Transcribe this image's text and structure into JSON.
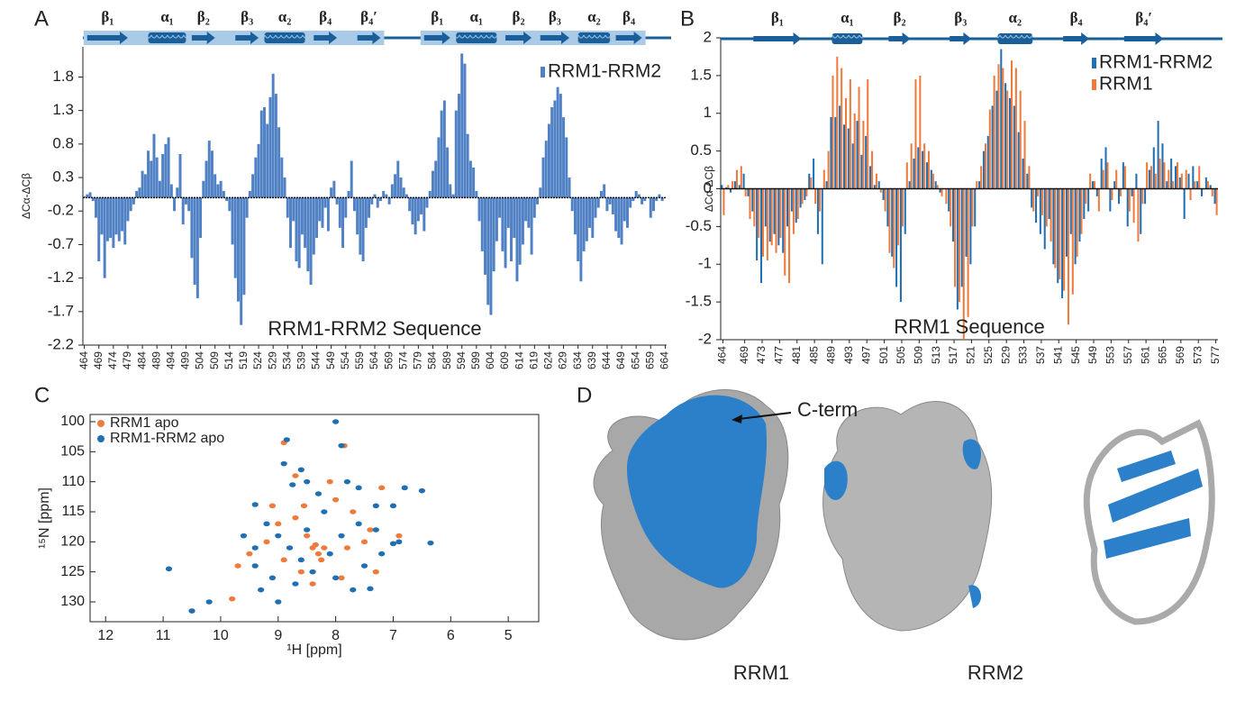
{
  "chart_data": [
    {
      "type": "bar",
      "panel_label": "A",
      "x_label": "RRM1-RRM2 Sequence",
      "y_label": "ΔCα-ΔCβ",
      "legend": "upper right",
      "ss_shaded": true,
      "xlim": [
        463.5,
        664.5
      ],
      "ylim": [
        -2.2,
        2.25
      ],
      "yticks": [
        1.8,
        1.3,
        0.8,
        0.3,
        -0.2,
        -0.7,
        -1.2,
        -1.7,
        -2.2
      ],
      "xticks": [
        464,
        469,
        474,
        479,
        484,
        489,
        494,
        499,
        504,
        509,
        514,
        519,
        524,
        529,
        534,
        539,
        544,
        549,
        554,
        559,
        564,
        569,
        574,
        579,
        584,
        589,
        594,
        599,
        604,
        609,
        614,
        619,
        624,
        629,
        634,
        639,
        644,
        649,
        654,
        659,
        664
      ],
      "x": [
        464,
        465,
        466,
        467,
        468,
        469,
        470,
        471,
        472,
        473,
        474,
        475,
        476,
        477,
        478,
        479,
        480,
        481,
        482,
        483,
        484,
        485,
        486,
        487,
        488,
        489,
        490,
        491,
        492,
        493,
        494,
        495,
        496,
        497,
        498,
        499,
        500,
        501,
        502,
        503,
        504,
        505,
        506,
        507,
        508,
        509,
        510,
        511,
        512,
        513,
        514,
        515,
        516,
        517,
        518,
        519,
        520,
        521,
        522,
        523,
        524,
        525,
        526,
        527,
        528,
        529,
        530,
        531,
        532,
        533,
        534,
        535,
        536,
        537,
        538,
        539,
        540,
        541,
        542,
        543,
        544,
        545,
        546,
        547,
        548,
        549,
        550,
        551,
        552,
        553,
        554,
        555,
        556,
        557,
        558,
        559,
        560,
        561,
        562,
        563,
        564,
        565,
        566,
        567,
        568,
        569,
        570,
        571,
        572,
        573,
        574,
        575,
        576,
        577,
        578,
        579,
        580,
        581,
        582,
        583,
        584,
        585,
        586,
        587,
        588,
        589,
        590,
        591,
        592,
        593,
        594,
        595,
        596,
        597,
        598,
        599,
        600,
        601,
        602,
        603,
        604,
        605,
        606,
        607,
        608,
        609,
        610,
        611,
        612,
        613,
        614,
        615,
        616,
        617,
        618,
        619,
        620,
        621,
        622,
        623,
        624,
        625,
        626,
        627,
        628,
        629,
        630,
        631,
        632,
        633,
        634,
        635,
        636,
        637,
        638,
        639,
        640,
        641,
        642,
        643,
        644,
        645,
        646,
        647,
        648,
        649,
        650,
        651,
        652,
        653,
        654,
        655,
        656,
        657,
        658,
        659,
        660,
        661,
        662,
        663,
        664
      ],
      "series": [
        {
          "name": "RRM1-RRM2",
          "color": "#4f81c4",
          "values": [
            0.02,
            0.05,
            0.08,
            -0.05,
            -0.3,
            -0.95,
            -0.55,
            -1.2,
            -0.65,
            -0.6,
            -0.75,
            -0.55,
            -0.65,
            -0.5,
            -0.7,
            -0.35,
            -0.2,
            -0.1,
            0.1,
            0.15,
            0.4,
            0.35,
            0.7,
            0.55,
            0.95,
            0.6,
            0.25,
            0.65,
            0.8,
            0.9,
            0.2,
            -0.2,
            0.15,
            0.65,
            -0.4,
            -0.1,
            -0.2,
            -0.9,
            -1.3,
            -1.5,
            -0.6,
            0.25,
            0.55,
            0.85,
            0.7,
            0.35,
            0.2,
            0.25,
            0.1,
            -0.05,
            -0.2,
            -0.7,
            -1.2,
            -1.55,
            -1.9,
            -1.45,
            -0.3,
            0.1,
            0.35,
            0.6,
            0.8,
            1.3,
            1.35,
            1.1,
            1.5,
            1.85,
            1.55,
            1.05,
            0.6,
            0.3,
            -0.3,
            -0.75,
            -0.35,
            -0.95,
            -1.05,
            -0.55,
            -0.75,
            -1.1,
            -1.3,
            -0.85,
            -0.6,
            -0.35,
            -0.45,
            -0.15,
            -0.5,
            0.15,
            0.25,
            -0.1,
            -0.45,
            -0.75,
            -0.3,
            0.1,
            0.55,
            -0.2,
            -0.55,
            -0.85,
            -0.95,
            -0.45,
            -0.3,
            -0.1,
            0.05,
            -0.15,
            -0.05,
            0.1,
            0.05,
            -0.1,
            0.2,
            0.35,
            0.55,
            0.3,
            0.15,
            0.05,
            -0.2,
            -0.4,
            -0.55,
            -0.35,
            -0.25,
            -0.5,
            -0.15,
            0.1,
            0.4,
            0.55,
            0.9,
            1.3,
            1.45,
            0.75,
            0.2,
            0.05,
            1.3,
            1.55,
            2.15,
            2.0,
            0.95,
            0.55,
            0.45,
            0.1,
            -0.35,
            -0.8,
            -1.15,
            -1.6,
            -1.75,
            -1.1,
            -0.65,
            -0.3,
            -0.8,
            -1.05,
            -0.45,
            -0.95,
            -0.6,
            -1.25,
            -1,
            -0.7,
            -0.35,
            -0.45,
            -0.85,
            -0.3,
            -0.1,
            0.15,
            0.6,
            0.85,
            1.1,
            1.35,
            1.45,
            1.65,
            1.55,
            1.2,
            0.9,
            0.3,
            -0.2,
            -0.55,
            -0.95,
            -1.25,
            -0.8,
            -0.65,
            -0.45,
            -0.6,
            -0.3,
            -0.15,
            0.1,
            0.2,
            -0.2,
            -0.1,
            -0.25,
            -0.5,
            -0.6,
            -0.7,
            -0.35,
            -0.45,
            -0.15,
            -0.05,
            0.1,
            0.05,
            -0.1,
            -0.05,
            0,
            -0.3,
            -0.2,
            -0.05,
            0.05,
            -0.05,
            0
          ]
        }
      ],
      "secondary_structure": [
        [
          {
            "label": "β₁",
            "start": 465,
            "end": 479
          },
          {
            "label": "α₁",
            "start": 486,
            "end": 499
          },
          {
            "label": "β₂",
            "start": 501,
            "end": 509
          },
          {
            "label": "β₃",
            "start": 516,
            "end": 524
          },
          {
            "label": "α₂",
            "start": 526,
            "end": 540
          },
          {
            "label": "β₄",
            "start": 543,
            "end": 551
          },
          {
            "label": "β₄′",
            "start": 558,
            "end": 566
          }
        ],
        [
          {
            "label": "β₁",
            "start": 581,
            "end": 590
          },
          {
            "label": "α₁",
            "start": 592,
            "end": 606
          },
          {
            "label": "β₂",
            "start": 609,
            "end": 618
          },
          {
            "label": "β₃",
            "start": 621,
            "end": 631
          },
          {
            "label": "α₂",
            "start": 634,
            "end": 645
          },
          {
            "label": "β₄",
            "start": 647,
            "end": 656
          }
        ]
      ]
    },
    {
      "type": "bar",
      "panel_label": "B",
      "x_label": "RRM1 Sequence",
      "y_label": "ΔCα-ΔCβ",
      "legend": "upper right",
      "ss_shaded": false,
      "xlim": [
        463.5,
        577.5
      ],
      "ylim": [
        -2,
        2
      ],
      "yticks": [
        2,
        1.5,
        1,
        0.5,
        0,
        -0.5,
        -1,
        -1.5,
        -2
      ],
      "xticks": [
        464,
        469,
        473,
        477,
        481,
        485,
        489,
        493,
        497,
        501,
        505,
        509,
        513,
        517,
        521,
        525,
        529,
        533,
        537,
        541,
        545,
        549,
        553,
        557,
        561,
        565,
        569,
        573,
        577
      ],
      "x": [
        464,
        465,
        466,
        467,
        468,
        469,
        470,
        471,
        472,
        473,
        474,
        475,
        476,
        477,
        478,
        479,
        480,
        481,
        482,
        483,
        484,
        485,
        486,
        487,
        488,
        489,
        490,
        491,
        492,
        493,
        494,
        495,
        496,
        497,
        498,
        499,
        500,
        501,
        502,
        503,
        504,
        505,
        506,
        507,
        508,
        509,
        510,
        511,
        512,
        513,
        514,
        515,
        516,
        517,
        518,
        519,
        520,
        521,
        522,
        523,
        524,
        525,
        526,
        527,
        528,
        529,
        530,
        531,
        532,
        533,
        534,
        535,
        536,
        537,
        538,
        539,
        540,
        541,
        542,
        543,
        544,
        545,
        546,
        547,
        548,
        549,
        550,
        551,
        552,
        553,
        554,
        555,
        556,
        557,
        558,
        559,
        560,
        561,
        562,
        563,
        564,
        565,
        566,
        567,
        568,
        569,
        570,
        571,
        572,
        573,
        574,
        575,
        576,
        577
      ],
      "series": [
        {
          "name": "RRM1-RRM2",
          "color": "#1f6fb2",
          "values": [
            0.05,
            0.02,
            -0.05,
            0.1,
            0.05,
            0.2,
            -0.1,
            -0.3,
            -0.95,
            -1.25,
            -0.5,
            -0.7,
            -0.6,
            -0.75,
            -0.85,
            -0.5,
            -0.3,
            -0.45,
            -0.25,
            -0.15,
            0.2,
            0.4,
            -0.6,
            -1,
            0.1,
            0.95,
            0.95,
            1.1,
            0.85,
            0.8,
            0.6,
            0.9,
            0.45,
            0.7,
            0.3,
            0.05,
            0.1,
            -0.15,
            -0.5,
            -0.9,
            -1.3,
            -1.5,
            -0.6,
            0.1,
            0.4,
            0.55,
            0.5,
            0.35,
            0.25,
            0.1,
            -0.05,
            0,
            -0.3,
            -0.7,
            -1.6,
            -1.3,
            -0.9,
            -1,
            -0.5,
            0.1,
            0.5,
            0.7,
            1.1,
            1.3,
            1.85,
            1.4,
            1.2,
            1.1,
            0.75,
            0.4,
            0.2,
            -0.25,
            -0.45,
            -0.6,
            -0.8,
            -0.4,
            -1,
            -1.25,
            -1.45,
            -0.9,
            -0.6,
            -1,
            -0.7,
            -0.4,
            -0.3,
            0.1,
            -0.1,
            0.4,
            0.55,
            -0.3,
            0.1,
            -0.2,
            0.35,
            -0.5,
            -0.1,
            0.2,
            -0.6,
            -0.2,
            0.25,
            0.55,
            0.9,
            0.6,
            0.1,
            0.4,
            0.3,
            0.15,
            -0.4,
            0.2,
            0.3,
            0.1,
            -0.1,
            0.15,
            0.05,
            -0.2
          ]
        },
        {
          "name": "RRM1",
          "color": "#ee7a3c",
          "values": [
            -0.35,
            0.05,
            0.1,
            0.25,
            0.3,
            -0.1,
            -0.4,
            -0.5,
            -0.65,
            -0.9,
            -0.95,
            -0.75,
            -0.85,
            -0.65,
            -1.15,
            -1.25,
            -0.6,
            -0.4,
            -0.2,
            -0.1,
            0.15,
            -0.2,
            -0.3,
            0.25,
            0.5,
            1.5,
            1.75,
            1.6,
            1.2,
            1.45,
            1,
            1.35,
            0.9,
            1.45,
            0.5,
            0.2,
            -0.05,
            -0.3,
            -0.85,
            -1.05,
            -0.75,
            -0.5,
            0.35,
            0.6,
            1.45,
            1.5,
            0.6,
            0.5,
            0.2,
            0.05,
            -0.1,
            -0.2,
            -0.5,
            -1.3,
            -1.5,
            -2,
            -1.7,
            -0.5,
            0.1,
            0.3,
            0.6,
            1.05,
            1.5,
            1.65,
            1.6,
            1.3,
            1.7,
            1.6,
            1.3,
            0.9,
            0.3,
            -0.3,
            -0.1,
            -0.35,
            -0.5,
            -0.7,
            -1.05,
            -1.2,
            -1.35,
            -1.8,
            -1.4,
            -0.9,
            -0.6,
            -0.2,
            0.2,
            0.1,
            -0.3,
            0.25,
            0.35,
            -0.15,
            0.25,
            -0.1,
            0.3,
            -0.3,
            -0.45,
            -0.7,
            -0.2,
            0.35,
            0.3,
            0.2,
            0.4,
            0.35,
            0.25,
            0.1,
            0.35,
            0.2,
            0.25,
            -0.15,
            0.1,
            0.3,
            0,
            0.1,
            -0.1,
            -0.35
          ]
        }
      ],
      "secondary_structure": [
        [
          {
            "label": "β₁",
            "start": 471,
            "end": 482
          },
          {
            "label": "α₁",
            "start": 489,
            "end": 496
          },
          {
            "label": "β₂",
            "start": 502,
            "end": 507
          },
          {
            "label": "β₃",
            "start": 516,
            "end": 521
          },
          {
            "label": "α₂",
            "start": 527,
            "end": 535
          },
          {
            "label": "β₄",
            "start": 542,
            "end": 548
          },
          {
            "label": "β₄′",
            "start": 556,
            "end": 565
          }
        ]
      ]
    },
    {
      "type": "scatter",
      "panel_label": "C",
      "x_label": "¹H [ppm]",
      "y_label": "¹⁵N [ppm]",
      "legend": "upper left",
      "xlim": [
        12.27,
        4.47
      ],
      "ylim": [
        133.3,
        98.8
      ],
      "xticks": [
        12,
        11,
        10,
        9,
        8,
        7,
        6,
        5
      ],
      "yticks": [
        100,
        105,
        110,
        115,
        120,
        125,
        130
      ],
      "series": [
        {
          "name": "RRM1 apo",
          "color": "#ee7a3c",
          "x": [
            10.5,
            9.8,
            8.9,
            8.4,
            8.3,
            8.2,
            8.35,
            8.25,
            8.5,
            8.7,
            9.1,
            8.0,
            7.7,
            7.4,
            7.2,
            8.6,
            8.9,
            9.5,
            9.7,
            7.8,
            7.5,
            6.9,
            8.1,
            8.7,
            9.0,
            7.9,
            8.4,
            9.2,
            7.3,
            8.55,
            7.85
          ],
          "y": [
            131.5,
            129.5,
            103.5,
            121,
            122,
            121,
            120.5,
            123,
            119,
            116,
            114,
            113,
            115,
            118,
            111,
            125,
            123,
            122,
            124,
            121,
            120,
            119,
            110,
            109,
            117,
            126,
            127,
            120,
            125,
            114,
            104
          ]
        },
        {
          "name": "RRM1-RRM2 apo",
          "color": "#1f6fb2",
          "x": [
            10.9,
            10.5,
            10.2,
            9.4,
            9.2,
            9.0,
            8.9,
            8.85,
            8.6,
            8.5,
            8.3,
            8.2,
            8.0,
            7.9,
            7.8,
            7.6,
            7.3,
            7.0,
            6.8,
            6.5,
            6.35,
            6.9,
            7.2,
            7.5,
            7.7,
            8.0,
            8.4,
            8.7,
            9.1,
            9.4,
            9.6,
            9.4,
            8.8,
            8.5,
            7.9,
            7.6,
            7.3,
            8.1,
            8.6,
            9.3,
            9.0,
            7.0,
            7.4,
            8.75
          ],
          "y": [
            124.5,
            131.5,
            130,
            113.8,
            117,
            119,
            107,
            103,
            108,
            110,
            112,
            115,
            100,
            104,
            110,
            111,
            114,
            114,
            111,
            111.5,
            120.2,
            120,
            122,
            124,
            128,
            126,
            125,
            127,
            126,
            124,
            119,
            121,
            121,
            118,
            119,
            117,
            118,
            122,
            123,
            128,
            130,
            120.3,
            127.8,
            110.5
          ]
        }
      ]
    }
  ],
  "panel_d": {
    "label": "D",
    "annotation": "C-term",
    "captions": [
      "RRM1",
      "RRM2"
    ]
  }
}
